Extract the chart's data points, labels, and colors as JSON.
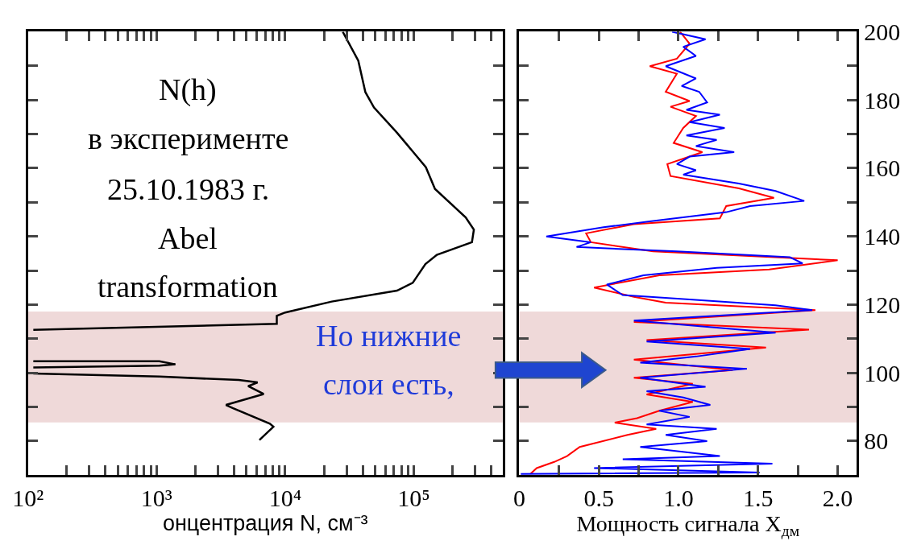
{
  "chart_data": [
    {
      "type": "line",
      "xlabel": "онцентрация N, см⁻³",
      "log": "x",
      "tick_labels": "x",
      "xlim": [
        100,
        490000
      ],
      "ylim": [
        70,
        200
      ],
      "xticks": [
        {
          "value": 100,
          "label": "10²"
        },
        {
          "value": 200,
          "label": null
        },
        {
          "value": 300,
          "label": null
        },
        {
          "value": 400,
          "label": null
        },
        {
          "value": 500,
          "label": null
        },
        {
          "value": 600,
          "label": null
        },
        {
          "value": 700,
          "label": null
        },
        {
          "value": 800,
          "label": null
        },
        {
          "value": 900,
          "label": null
        },
        {
          "value": 1000,
          "label": "10³"
        },
        {
          "value": 2000,
          "label": null
        },
        {
          "value": 3000,
          "label": null
        },
        {
          "value": 4000,
          "label": null
        },
        {
          "value": 5000,
          "label": null
        },
        {
          "value": 6000,
          "label": null
        },
        {
          "value": 7000,
          "label": null
        },
        {
          "value": 8000,
          "label": null
        },
        {
          "value": 9000,
          "label": null
        },
        {
          "value": 10000,
          "label": "10⁴"
        },
        {
          "value": 20000,
          "label": null
        },
        {
          "value": 30000,
          "label": null
        },
        {
          "value": 40000,
          "label": null
        },
        {
          "value": 50000,
          "label": null
        },
        {
          "value": 60000,
          "label": null
        },
        {
          "value": 70000,
          "label": null
        },
        {
          "value": 80000,
          "label": null
        },
        {
          "value": 90000,
          "label": null
        },
        {
          "value": 100000,
          "label": "10⁵"
        },
        {
          "value": 200000,
          "label": null
        },
        {
          "value": 300000,
          "label": null
        },
        {
          "value": 400000,
          "label": null
        }
      ],
      "yticks": [
        {
          "value": 70,
          "label": null
        },
        {
          "value": 80,
          "label": null
        },
        {
          "value": 90,
          "label": null
        },
        {
          "value": 100,
          "label": null
        },
        {
          "value": 110,
          "label": null
        },
        {
          "value": 120,
          "label": null
        },
        {
          "value": 130,
          "label": null
        },
        {
          "value": 140,
          "label": null
        },
        {
          "value": 150,
          "label": null
        },
        {
          "value": 160,
          "label": null
        },
        {
          "value": 170,
          "label": null
        },
        {
          "value": 180,
          "label": null
        },
        {
          "value": 190,
          "label": null
        },
        {
          "value": 200,
          "label": null
        }
      ],
      "bands": [
        {
          "axis": "y",
          "from": 85.5,
          "to": 118,
          "color": "#efd9d9"
        }
      ],
      "annotations": [
        "N(h)",
        "в эксперименте",
        "25.10.1983 г.",
        "Abel",
        "transformation",
        "Но нижние",
        "слои есть,"
      ],
      "series": [
        {
          "color": "#000000",
          "x": [
            28000,
            37000,
            42000,
            49000,
            74000,
            124000,
            146000,
            253000,
            293000,
            283000,
            151000,
            123000,
            98000,
            74000,
            23000,
            10000,
            8600,
            8600,
            110,
            null,
            110,
            1050,
            1400,
            1050,
            110,
            null,
            110,
            1050,
            4350,
            6100,
            5150,
            6800,
            3460,
            3900,
            7600,
            8100,
            6300
          ],
          "values": [
            200,
            191.5,
            182.3,
            177.8,
            170.4,
            160.3,
            153.9,
            145.6,
            142,
            138.3,
            134.6,
            131.9,
            126.4,
            124.1,
            120.9,
            117.7,
            116.7,
            114.4,
            112.6,
            null,
            103.4,
            103.4,
            102.5,
            102.1,
            101.6,
            null,
            99.8,
            98.9,
            97.9,
            97.2,
            96.1,
            93.8,
            90.6,
            89.7,
            85.1,
            84.2,
            80.3
          ]
        }
      ]
    },
    {
      "type": "line",
      "xlabel": "Мощность сигнала X$_{дм}$",
      "xlim": [
        0,
        2.12
      ],
      "ylim": [
        70,
        200
      ],
      "xticks": [
        0,
        {
          "value": 0.25,
          "label": null
        },
        0.5,
        {
          "value": 0.75,
          "label": null
        },
        {
          "value": 1,
          "label": "1.0"
        },
        {
          "value": 1.25,
          "label": null
        },
        1.5,
        {
          "value": 1.75,
          "label": null
        },
        {
          "value": 2,
          "label": "2.0"
        }
      ],
      "yticks": [
        {
          "value": 70,
          "label": null
        },
        80,
        {
          "value": 90,
          "label": null
        },
        100,
        {
          "value": 110,
          "label": null
        },
        120,
        {
          "value": 130,
          "label": null
        },
        140,
        {
          "value": 150,
          "label": null
        },
        160,
        {
          "value": 170,
          "label": null
        },
        180,
        {
          "value": 190,
          "label": null
        },
        200
      ],
      "bands": [
        {
          "axis": "y",
          "from": 85.5,
          "to": 118,
          "color": "#efd9d9"
        }
      ],
      "series": [
        {
          "color": "#ff0000",
          "x": [
            1.01,
            1.07,
            0.99,
            0.82,
            0.99,
            0.92,
            1.07,
            0.95,
            1.11,
            1.03,
            0.97,
            1.15,
            0.93,
            0.95,
            1.38,
            1.6,
            1.3,
            1.26,
            0.72,
            0.42,
            0.45,
            0.84,
            2.0,
            1.57,
            0.88,
            0.47,
            0.72,
            0.92,
            1.86,
            0.72,
            1.82,
            0.8,
            1.55,
            0.72,
            1.34,
            0.72,
            1.09,
            0.8,
            1.09,
            0.88,
            0.74,
            0.6,
            0.86,
            0.68,
            0.38,
            0.3,
            0.22,
            0.11,
            0.07
          ],
          "values": [
            200,
            196.5,
            192.1,
            189.9,
            187.7,
            182.4,
            179.7,
            178,
            175.3,
            171.8,
            167.4,
            164.7,
            161.2,
            157.7,
            154.1,
            151.3,
            148.9,
            145.3,
            143.6,
            140.9,
            138.3,
            135.6,
            133,
            130.3,
            128.6,
            125,
            122.3,
            120.6,
            118.4,
            114.9,
            112.7,
            109.6,
            107.4,
            103.9,
            100.8,
            98.6,
            96.8,
            93.7,
            91.5,
            88.9,
            86.7,
            85.4,
            83.6,
            81.8,
            78.3,
            75.6,
            73.9,
            72.1,
            70.4
          ]
        },
        {
          "color": "#0000ff",
          "x": [
            0.96,
            1.17,
            1.03,
            1.11,
            0.92,
            1.11,
            1.02,
            1.13,
            1.18,
            1.05,
            1.26,
            1.07,
            1.29,
            1.05,
            1.24,
            1.11,
            1.35,
            1.07,
            0.99,
            1.11,
            1.03,
            1.38,
            1.61,
            1.79,
            1.45,
            1.3,
            0.82,
            0.53,
            0.17,
            0.45,
            0.36,
            0.99,
            1.7,
            1.78,
            1.24,
            0.78,
            0.55,
            0.65,
            1.07,
            1.61,
            1.84,
            0.72,
            1.61,
            0.8,
            1.45,
            1.11,
            0.76,
            1.43,
            0.76,
            1.17,
            0.8,
            1.03,
            1.2,
            0.88,
            1.07,
            0.8,
            1.24,
            0.92,
            1.18,
            0.76,
            1.26,
            0.65,
            1.59,
            0.47,
            1.51,
            0.01
          ],
          "values": [
            200,
            197.8,
            195.6,
            192.9,
            189.9,
            186.3,
            184.1,
            182.4,
            179.3,
            177.1,
            175.7,
            173.5,
            171.8,
            169.6,
            168.3,
            166.5,
            164.7,
            163.4,
            161.2,
            159.4,
            158.1,
            155.5,
            153.3,
            150.4,
            148.9,
            147.1,
            144.4,
            142.7,
            140,
            138.3,
            136.9,
            135.6,
            133.9,
            132.1,
            130.8,
            128.6,
            125.9,
            122.8,
            121.5,
            119.8,
            118.4,
            115.3,
            111.8,
            109.2,
            107,
            104.8,
            103,
            101.2,
            98.6,
            95.9,
            94.6,
            92.8,
            90.6,
            88.9,
            87.1,
            84.9,
            83.6,
            81.8,
            80,
            78.3,
            75.6,
            74.7,
            73.4,
            72.1,
            70.8,
            70.4
          ]
        }
      ]
    }
  ]
}
